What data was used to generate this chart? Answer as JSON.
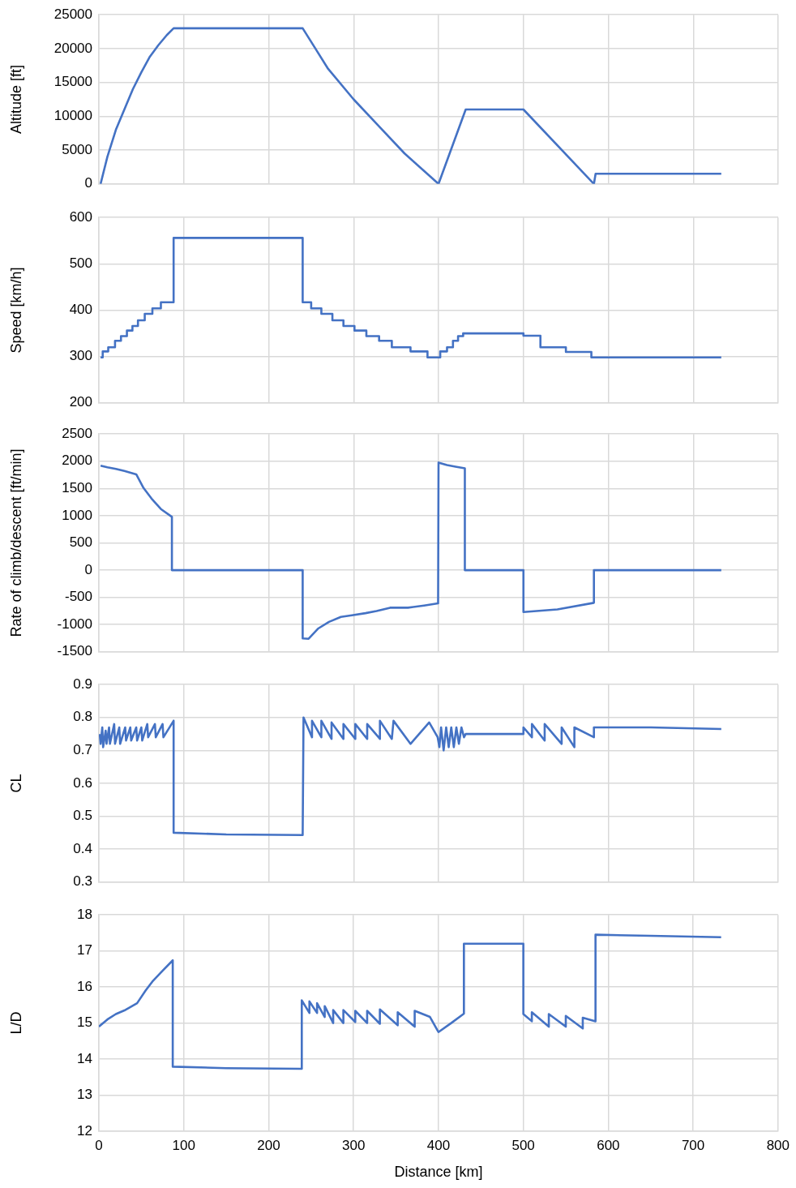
{
  "chart_data": [
    {
      "type": "line",
      "ylabel": "Altitude [ft]",
      "color": "#4472c4",
      "grid": true,
      "tick_labels": "y",
      "xlim": [
        0,
        800
      ],
      "xticks": [
        0,
        100,
        200,
        300,
        400,
        500,
        600,
        700,
        800
      ],
      "ylim": [
        0,
        25000
      ],
      "yticks": [
        0,
        5000,
        10000,
        15000,
        20000,
        25000
      ],
      "x": [
        2,
        10,
        20,
        30,
        40,
        50,
        60,
        70,
        80,
        88,
        240,
        255,
        270,
        300,
        330,
        360,
        400,
        432,
        500,
        583,
        585,
        733
      ],
      "values": [
        0,
        4000,
        8000,
        11000,
        14000,
        16500,
        18800,
        20500,
        22000,
        23000,
        23000,
        20000,
        17000,
        12500,
        8500,
        4500,
        0,
        11000,
        11000,
        0,
        1500,
        1500
      ]
    },
    {
      "type": "step",
      "ylabel": "Speed [km/h]",
      "color": "#4472c4",
      "grid": true,
      "tick_labels": "y",
      "xlim": [
        0,
        800
      ],
      "xticks": [
        0,
        100,
        200,
        300,
        400,
        500,
        600,
        700,
        800
      ],
      "ylim": [
        200,
        600
      ],
      "yticks": [
        200,
        300,
        400,
        500,
        600
      ],
      "x": [
        2,
        4.5,
        11,
        19,
        26,
        33,
        39.5,
        46,
        54,
        63,
        73,
        88,
        240,
        250,
        262,
        275,
        288,
        301,
        315,
        330,
        345,
        367,
        387,
        402,
        410,
        417,
        423,
        429,
        500,
        520,
        550,
        580,
        733
      ],
      "values": [
        298,
        311,
        320,
        334,
        344,
        356,
        366,
        378,
        392,
        404,
        417,
        556,
        417,
        404,
        392,
        378,
        366,
        356,
        344,
        334,
        320,
        311,
        298,
        311,
        320,
        334,
        344,
        350,
        345,
        320,
        310,
        298,
        298
      ]
    },
    {
      "type": "line",
      "ylabel": "Rate of climb/descent [ft/min]",
      "color": "#4472c4",
      "grid": true,
      "tick_labels": "y",
      "xlim": [
        0,
        800
      ],
      "xticks": [
        0,
        100,
        200,
        300,
        400,
        500,
        600,
        700,
        800
      ],
      "ylim": [
        -1500,
        2500
      ],
      "yticks": [
        -1500,
        -1000,
        -500,
        0,
        500,
        1000,
        1500,
        2000,
        2500
      ],
      "x": [
        2,
        10,
        20,
        30,
        44,
        52.6,
        62,
        73,
        86,
        86,
        240,
        240,
        247,
        258,
        271,
        285,
        298,
        314,
        327,
        343,
        364,
        383,
        399.5,
        400,
        410,
        420,
        431,
        431,
        500,
        500,
        540,
        583,
        583,
        733
      ],
      "values": [
        1920,
        1890,
        1860,
        1820,
        1759,
        1508,
        1315,
        1122,
        978,
        0,
        0,
        -1254,
        -1260,
        -1075,
        -950,
        -860,
        -830,
        -790,
        -750,
        -690,
        -690,
        -650,
        -610,
        1976,
        1930,
        1900,
        1870,
        0,
        0,
        -770,
        -720,
        -600,
        0,
        0
      ]
    },
    {
      "type": "line",
      "ylabel": "CL",
      "color": "#4472c4",
      "grid": true,
      "tick_labels": "y",
      "xlim": [
        0,
        800
      ],
      "xticks": [
        0,
        100,
        200,
        300,
        400,
        500,
        600,
        700,
        800
      ],
      "ylim": [
        0.3,
        0.9
      ],
      "yticks": [
        0.3,
        0.4,
        0.5,
        0.6,
        0.7,
        0.8,
        0.9
      ],
      "x": [
        1,
        2,
        4,
        5,
        8,
        9,
        12,
        13,
        18,
        19,
        24,
        25,
        31,
        32,
        37,
        38,
        44,
        45,
        50,
        51,
        57,
        58,
        66,
        67,
        75,
        76,
        88,
        88,
        150,
        240,
        241,
        251,
        251,
        262,
        262,
        274,
        274,
        288,
        288,
        302,
        302,
        316,
        316,
        331,
        331,
        345,
        347,
        367,
        389,
        399,
        401,
        403,
        406,
        409,
        412,
        415,
        418,
        421,
        424,
        427,
        430,
        432,
        500,
        500,
        510,
        510,
        525,
        525,
        545,
        545,
        560,
        560,
        583,
        583,
        650,
        733
      ],
      "values": [
        0.75,
        0.72,
        0.77,
        0.71,
        0.76,
        0.72,
        0.77,
        0.72,
        0.78,
        0.72,
        0.77,
        0.72,
        0.77,
        0.73,
        0.77,
        0.73,
        0.77,
        0.73,
        0.77,
        0.73,
        0.78,
        0.74,
        0.78,
        0.74,
        0.78,
        0.74,
        0.79,
        0.45,
        0.445,
        0.443,
        0.8,
        0.74,
        0.79,
        0.74,
        0.79,
        0.735,
        0.785,
        0.735,
        0.78,
        0.735,
        0.78,
        0.735,
        0.78,
        0.735,
        0.79,
        0.735,
        0.79,
        0.72,
        0.785,
        0.74,
        0.71,
        0.77,
        0.7,
        0.77,
        0.71,
        0.77,
        0.71,
        0.77,
        0.72,
        0.77,
        0.74,
        0.75,
        0.75,
        0.77,
        0.74,
        0.78,
        0.73,
        0.78,
        0.72,
        0.77,
        0.71,
        0.77,
        0.74,
        0.77,
        0.77,
        0.765
      ]
    },
    {
      "type": "line",
      "ylabel": "L/D",
      "xlabel": "Distance [km]",
      "color": "#4472c4",
      "grid": true,
      "xlim": [
        0,
        800
      ],
      "xticks": [
        0,
        100,
        200,
        300,
        400,
        500,
        600,
        700,
        800
      ],
      "ylim": [
        12,
        18
      ],
      "yticks": [
        12,
        13,
        14,
        15,
        16,
        17,
        18
      ],
      "x": [
        0,
        10,
        20,
        30,
        45,
        55,
        63,
        75,
        87,
        87,
        150,
        239,
        239,
        248,
        248,
        257,
        257,
        266,
        266,
        276,
        276,
        288,
        288,
        302,
        302,
        316,
        316,
        331,
        331,
        352,
        352,
        372,
        372,
        390,
        400,
        415,
        430,
        430,
        500,
        500,
        510,
        510,
        530,
        530,
        550,
        550,
        570,
        570,
        585,
        585,
        650,
        733
      ],
      "values": [
        14.9,
        15.1,
        15.25,
        15.35,
        15.55,
        15.9,
        16.15,
        16.45,
        16.74,
        13.79,
        13.75,
        13.73,
        15.63,
        15.28,
        15.6,
        15.28,
        15.55,
        15.17,
        15.47,
        15,
        15.36,
        15,
        15.36,
        15.03,
        15.34,
        15,
        15.34,
        14.98,
        15.38,
        14.94,
        15.3,
        14.9,
        15.34,
        15.17,
        14.75,
        15,
        15.26,
        17.2,
        17.2,
        15.25,
        15.05,
        15.3,
        14.9,
        15.25,
        14.9,
        15.2,
        14.85,
        15.15,
        15.05,
        17.45,
        17.42,
        17.38
      ]
    }
  ]
}
